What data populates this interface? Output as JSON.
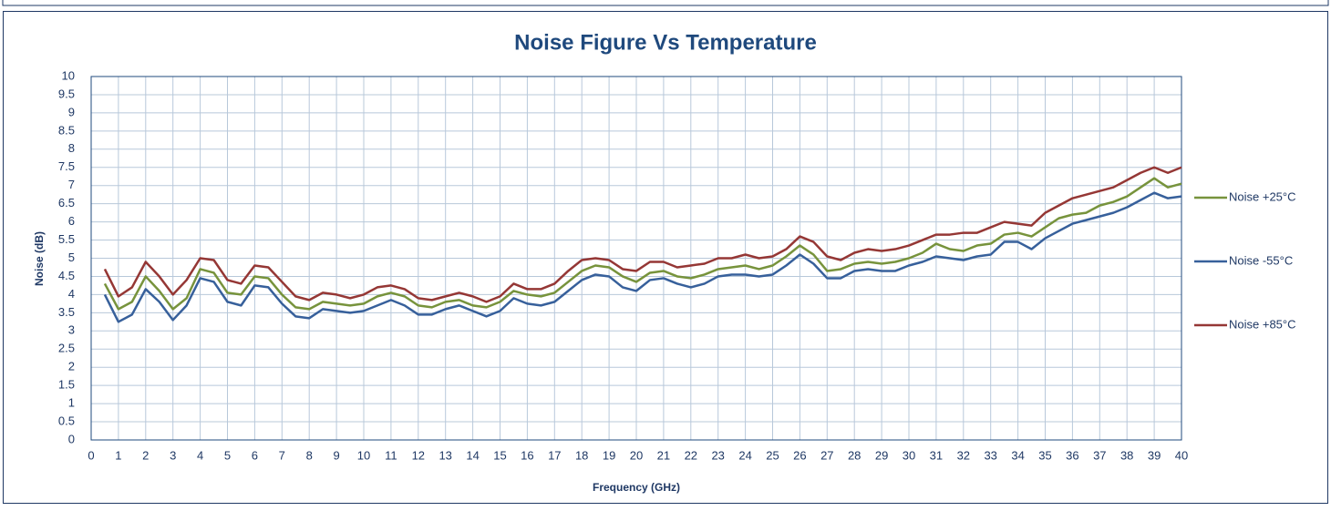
{
  "chart_data": {
    "type": "line",
    "title": "Noise Figure Vs Temperature",
    "x_label": "Frequency (GHz)",
    "y_label": "Noise  (dB)",
    "x": [
      0.5,
      1,
      1.5,
      2,
      2.5,
      3,
      3.5,
      4,
      4.5,
      5,
      5.5,
      6,
      6.5,
      7,
      7.5,
      8,
      8.5,
      9,
      9.5,
      10,
      10.5,
      11,
      11.5,
      12,
      12.5,
      13,
      13.5,
      14,
      14.5,
      15,
      15.5,
      16,
      16.5,
      17,
      17.5,
      18,
      18.5,
      19,
      19.5,
      20,
      20.5,
      21,
      21.5,
      22,
      22.5,
      23,
      23.5,
      24,
      24.5,
      25,
      25.5,
      26,
      26.5,
      27,
      27.5,
      28,
      28.5,
      29,
      29.5,
      30,
      30.5,
      31,
      31.5,
      32,
      32.5,
      33,
      33.5,
      34,
      34.5,
      35,
      35.5,
      36,
      36.5,
      37,
      37.5,
      38,
      38.5,
      39,
      39.5,
      40
    ],
    "series": [
      {
        "name": "Noise +25°C",
        "color": "#77933c",
        "values": [
          4.3,
          3.6,
          3.8,
          4.5,
          4.1,
          3.6,
          3.9,
          4.7,
          4.6,
          4.05,
          4.0,
          4.5,
          4.45,
          4.0,
          3.65,
          3.6,
          3.8,
          3.75,
          3.7,
          3.75,
          3.95,
          4.05,
          3.95,
          3.7,
          3.65,
          3.8,
          3.85,
          3.7,
          3.65,
          3.8,
          4.1,
          4.0,
          3.95,
          4.05,
          4.35,
          4.65,
          4.8,
          4.75,
          4.5,
          4.35,
          4.6,
          4.65,
          4.5,
          4.45,
          4.55,
          4.7,
          4.75,
          4.8,
          4.7,
          4.8,
          5.05,
          5.35,
          5.1,
          4.65,
          4.7,
          4.85,
          4.9,
          4.85,
          4.9,
          5.0,
          5.15,
          5.4,
          5.25,
          5.2,
          5.35,
          5.4,
          5.65,
          5.7,
          5.6,
          5.85,
          6.1,
          6.2,
          6.25,
          6.45,
          6.55,
          6.7,
          6.95,
          7.2,
          6.95,
          7.05
        ]
      },
      {
        "name": "Noise -55°C",
        "color": "#37609b",
        "values": [
          4.0,
          3.25,
          3.45,
          4.15,
          3.8,
          3.3,
          3.7,
          4.45,
          4.35,
          3.8,
          3.7,
          4.25,
          4.2,
          3.75,
          3.4,
          3.35,
          3.6,
          3.55,
          3.5,
          3.55,
          3.7,
          3.85,
          3.7,
          3.45,
          3.45,
          3.6,
          3.7,
          3.55,
          3.4,
          3.55,
          3.9,
          3.75,
          3.7,
          3.8,
          4.1,
          4.4,
          4.55,
          4.5,
          4.2,
          4.1,
          4.4,
          4.45,
          4.3,
          4.2,
          4.3,
          4.5,
          4.55,
          4.55,
          4.5,
          4.55,
          4.8,
          5.1,
          4.85,
          4.45,
          4.45,
          4.65,
          4.7,
          4.65,
          4.65,
          4.8,
          4.9,
          5.05,
          5.0,
          4.95,
          5.05,
          5.1,
          5.45,
          5.45,
          5.25,
          5.55,
          5.75,
          5.95,
          6.05,
          6.15,
          6.25,
          6.4,
          6.6,
          6.8,
          6.65,
          6.7
        ]
      },
      {
        "name": "Noise +85°C",
        "color": "#953735",
        "values": [
          4.7,
          3.95,
          4.2,
          4.9,
          4.5,
          4.0,
          4.4,
          5.0,
          4.95,
          4.4,
          4.3,
          4.8,
          4.75,
          4.35,
          3.95,
          3.85,
          4.05,
          4.0,
          3.9,
          4.0,
          4.2,
          4.25,
          4.15,
          3.9,
          3.85,
          3.95,
          4.05,
          3.95,
          3.8,
          3.95,
          4.3,
          4.15,
          4.15,
          4.3,
          4.65,
          4.95,
          5.0,
          4.95,
          4.7,
          4.65,
          4.9,
          4.9,
          4.75,
          4.8,
          4.85,
          5.0,
          5.0,
          5.1,
          5.0,
          5.05,
          5.25,
          5.6,
          5.45,
          5.05,
          4.95,
          5.15,
          5.25,
          5.2,
          5.25,
          5.35,
          5.5,
          5.65,
          5.65,
          5.7,
          5.7,
          5.85,
          6.0,
          5.95,
          5.9,
          6.25,
          6.45,
          6.65,
          6.75,
          6.85,
          6.95,
          7.15,
          7.35,
          7.5,
          7.35,
          7.5
        ]
      }
    ],
    "xlim": [
      0,
      40
    ],
    "xticks": [
      0,
      1,
      2,
      3,
      4,
      5,
      6,
      7,
      8,
      9,
      10,
      11,
      12,
      13,
      14,
      15,
      16,
      17,
      18,
      19,
      20,
      21,
      22,
      23,
      24,
      25,
      26,
      27,
      28,
      29,
      30,
      31,
      32,
      33,
      34,
      35,
      36,
      37,
      38,
      39,
      40
    ],
    "ylim": [
      0,
      10
    ],
    "yticks": [
      0,
      0.5,
      1,
      1.5,
      2,
      2.5,
      3,
      3.5,
      4,
      4.5,
      5,
      5.5,
      6,
      6.5,
      7,
      7.5,
      8,
      8.5,
      9,
      9.5,
      10
    ],
    "grid": true,
    "legend": "right"
  }
}
